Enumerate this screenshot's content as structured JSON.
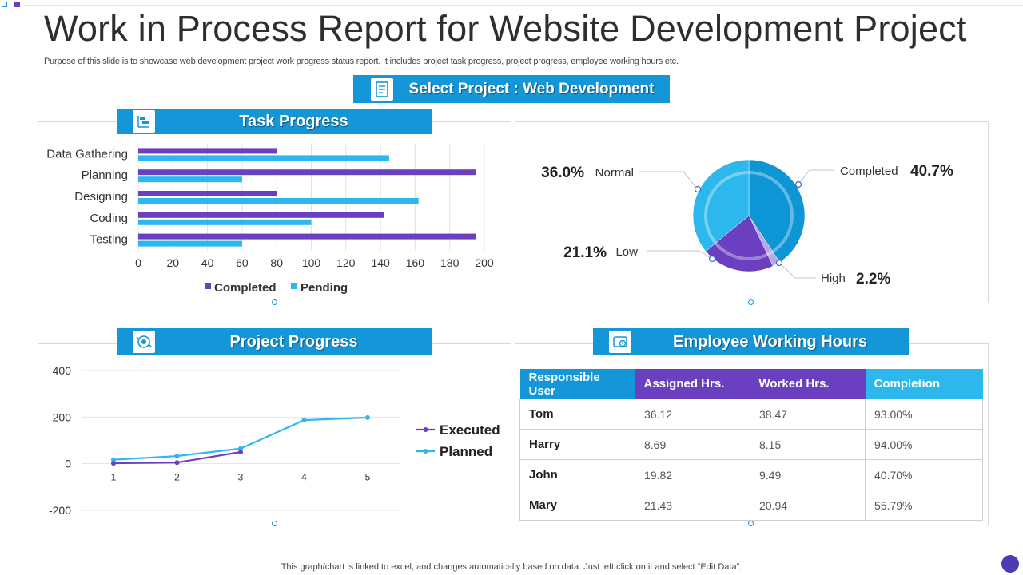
{
  "title": "Work in Process Report for Website Development Project",
  "subtitle": "Purpose of this slide is to showcase web development project work progress status report. It includes project task progress, project progress, employee working hours etc.",
  "select_project": {
    "label": "Select Project : Web Development",
    "icon": "document-icon"
  },
  "task_progress": {
    "title": "Task Progress",
    "icon": "gantt-icon",
    "chart_data": {
      "type": "bar",
      "orientation": "horizontal",
      "categories": [
        "Data Gathering",
        "Planning",
        "Designing",
        "Coding",
        "Testing"
      ],
      "series": [
        {
          "name": "Completed",
          "values": [
            80,
            195,
            80,
            142,
            195
          ],
          "color": "#6a3fc0"
        },
        {
          "name": "Pending",
          "values": [
            145,
            60,
            162,
            100,
            60
          ],
          "color": "#2cb8ec"
        }
      ],
      "xlim": [
        0,
        200
      ],
      "xticks": [
        "0",
        "20",
        "40",
        "60",
        "80",
        "100",
        "120",
        "140",
        "160",
        "180",
        "200"
      ],
      "grid": true,
      "legend": "bottom"
    }
  },
  "status_pie": {
    "chart_data": {
      "type": "pie",
      "slices": [
        {
          "name": "Completed",
          "value": 40.7,
          "label": "40.7%",
          "color": "#0e95d6"
        },
        {
          "name": "High",
          "value": 2.2,
          "label": "2.2%",
          "color": "#b7a8e4"
        },
        {
          "name": "Low",
          "value": 21.1,
          "label": "21.1%",
          "color": "#6a3fc0"
        },
        {
          "name": "Normal",
          "value": 36.0,
          "label": "36.0%",
          "color": "#2cb8ec"
        }
      ]
    }
  },
  "project_progress": {
    "title": "Project Progress",
    "icon": "gear-cycle-icon",
    "chart_data": {
      "type": "line",
      "x": [
        "1",
        "2",
        "3",
        "4",
        "5"
      ],
      "series": [
        {
          "name": "Executed",
          "values": [
            2,
            5,
            50,
            null,
            null
          ],
          "color": "#6a3fc0"
        },
        {
          "name": "Planned",
          "values": [
            17,
            33,
            65,
            187,
            198
          ],
          "color": "#2cb8ec"
        }
      ],
      "ylim": [
        -200,
        400
      ],
      "yticks": [
        "400",
        "200",
        "0",
        "-200"
      ],
      "grid": true,
      "legend": "right"
    }
  },
  "employee_hours": {
    "title": "Employee Working Hours",
    "icon": "clock-icon",
    "headers": [
      "Responsible User",
      "Assigned Hrs.",
      "Worked Hrs.",
      "Completion"
    ],
    "header_colors": [
      "#1496d8",
      "#6a3fc0",
      "#6a3fc0",
      "#2cb8ec"
    ],
    "rows": [
      [
        "Tom",
        "36.12",
        "38.47",
        "93.00%"
      ],
      [
        "Harry",
        "8.69",
        "8.15",
        "94.00%"
      ],
      [
        "John",
        "19.82",
        "9.49",
        "40.70%"
      ],
      [
        "Mary",
        "21.43",
        "20.94",
        "55.79%"
      ]
    ]
  },
  "footer": "This graph/chart is linked to excel,  and changes automatically based on data. Just left click on it and select “Edit Data”."
}
